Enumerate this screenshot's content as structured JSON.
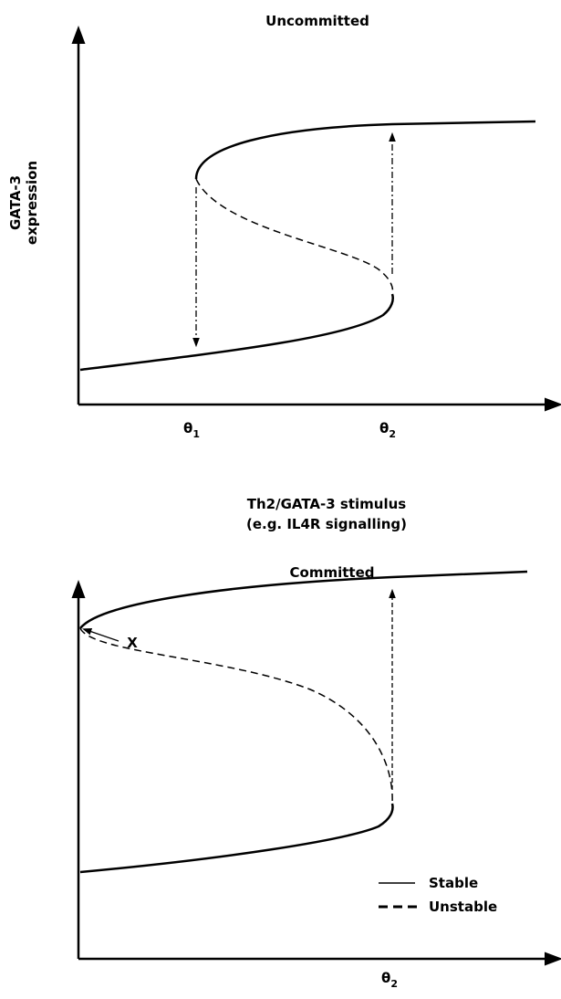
{
  "panels": [
    {
      "title": "Uncommitted",
      "y_label": [
        "GATA-3",
        "expression"
      ],
      "ticks": [
        {
          "symbol": "θ",
          "subscript": "1"
        },
        {
          "symbol": "θ",
          "subscript": "2"
        }
      ],
      "x_label": [
        "Th2/GATA-3 stimulus",
        "(e.g. IL4R signalling)"
      ]
    },
    {
      "title": "Committed",
      "annotation": "X",
      "ticks": [
        {
          "symbol": "θ",
          "subscript": "2"
        }
      ],
      "legend": [
        "Stable",
        "Unstable"
      ]
    }
  ]
}
